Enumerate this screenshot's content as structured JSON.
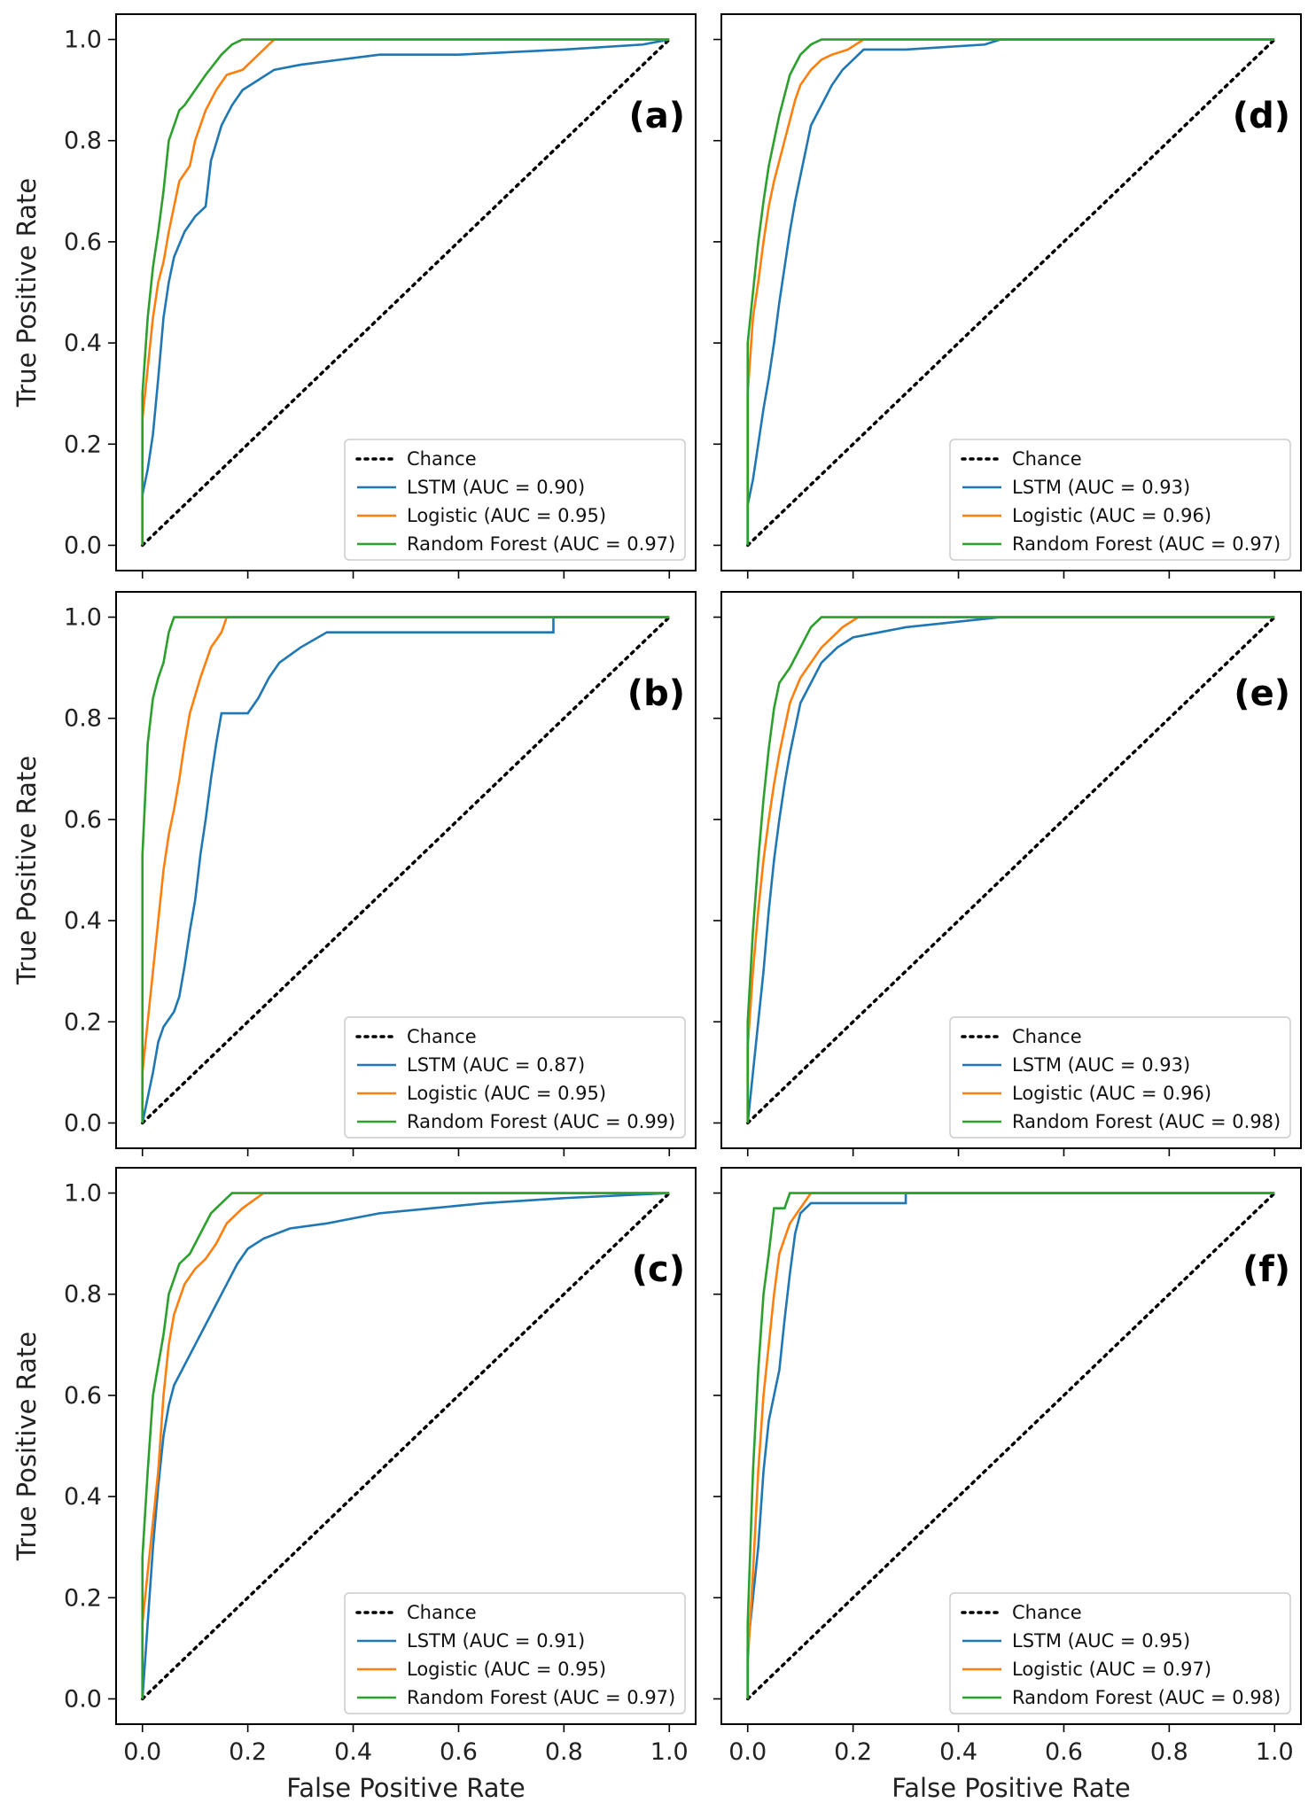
{
  "chart_data": {
    "type": "line",
    "xlabel": "False Positive Rate",
    "ylabel": "True Positive Rate",
    "xlim": [
      -0.05,
      1.05
    ],
    "ylim": [
      -0.05,
      1.05
    ],
    "xticks": [
      "0.0",
      "0.2",
      "0.4",
      "0.6",
      "0.8",
      "1.0"
    ],
    "yticks": [
      "0.0",
      "0.2",
      "0.4",
      "0.6",
      "0.8",
      "1.0"
    ],
    "colors": {
      "chance": "#000000",
      "LSTM": "#1f77b4",
      "Logistic": "#ff7f0e",
      "Random Forest": "#2ca02c"
    },
    "legend_location": "lower-right",
    "panels": [
      {
        "label": "(a)",
        "legend": [
          "Chance",
          "LSTM (AUC = 0.90)",
          "Logistic (AUC = 0.95)",
          "Random Forest (AUC = 0.97)"
        ],
        "series": [
          {
            "name": "Chance",
            "x": [
              0,
              1
            ],
            "y": [
              0,
              1
            ]
          },
          {
            "name": "LSTM",
            "x": [
              0,
              0,
              0.01,
              0.02,
              0.03,
              0.04,
              0.05,
              0.06,
              0.08,
              0.1,
              0.12,
              0.13,
              0.15,
              0.17,
              0.19,
              0.22,
              0.25,
              0.3,
              0.45,
              0.6,
              0.8,
              0.95,
              1.0
            ],
            "y": [
              0,
              0.1,
              0.15,
              0.22,
              0.33,
              0.45,
              0.52,
              0.57,
              0.62,
              0.65,
              0.67,
              0.76,
              0.83,
              0.87,
              0.9,
              0.92,
              0.94,
              0.95,
              0.97,
              0.97,
              0.98,
              0.99,
              1.0
            ]
          },
          {
            "name": "Logistic",
            "x": [
              0,
              0,
              0.01,
              0.02,
              0.03,
              0.04,
              0.05,
              0.06,
              0.07,
              0.09,
              0.1,
              0.12,
              0.14,
              0.16,
              0.19,
              0.21,
              0.23,
              0.25,
              1.0
            ],
            "y": [
              0,
              0.25,
              0.35,
              0.45,
              0.52,
              0.56,
              0.62,
              0.67,
              0.72,
              0.75,
              0.8,
              0.86,
              0.9,
              0.93,
              0.94,
              0.96,
              0.98,
              1.0,
              1.0
            ]
          },
          {
            "name": "Random Forest",
            "x": [
              0,
              0,
              0.01,
              0.02,
              0.03,
              0.04,
              0.05,
              0.07,
              0.08,
              0.1,
              0.12,
              0.15,
              0.17,
              0.19,
              1.0
            ],
            "y": [
              0,
              0.3,
              0.45,
              0.55,
              0.62,
              0.7,
              0.8,
              0.86,
              0.87,
              0.9,
              0.93,
              0.97,
              0.99,
              1.0,
              1.0
            ]
          }
        ]
      },
      {
        "label": "(b)",
        "legend": [
          "Chance",
          "LSTM (AUC = 0.87)",
          "Logistic (AUC = 0.95)",
          "Random Forest (AUC = 0.99)"
        ],
        "series": [
          {
            "name": "Chance",
            "x": [
              0,
              1
            ],
            "y": [
              0,
              1
            ]
          },
          {
            "name": "LSTM",
            "x": [
              0,
              0.01,
              0.02,
              0.03,
              0.04,
              0.06,
              0.07,
              0.08,
              0.09,
              0.1,
              0.11,
              0.12,
              0.13,
              0.14,
              0.15,
              0.17,
              0.2,
              0.22,
              0.24,
              0.26,
              0.3,
              0.35,
              0.5,
              0.78,
              0.78,
              1.0
            ],
            "y": [
              0,
              0.05,
              0.1,
              0.16,
              0.19,
              0.22,
              0.25,
              0.31,
              0.38,
              0.44,
              0.53,
              0.6,
              0.68,
              0.75,
              0.81,
              0.81,
              0.81,
              0.84,
              0.88,
              0.91,
              0.94,
              0.97,
              0.97,
              0.97,
              1.0,
              1.0
            ]
          },
          {
            "name": "Logistic",
            "x": [
              0,
              0,
              0.01,
              0.02,
              0.03,
              0.04,
              0.05,
              0.06,
              0.07,
              0.08,
              0.09,
              0.11,
              0.13,
              0.15,
              0.16,
              1.0
            ],
            "y": [
              0,
              0.1,
              0.2,
              0.3,
              0.4,
              0.5,
              0.57,
              0.62,
              0.68,
              0.75,
              0.81,
              0.88,
              0.94,
              0.97,
              1.0,
              1.0
            ]
          },
          {
            "name": "Random Forest",
            "x": [
              0,
              0,
              0.01,
              0.02,
              0.03,
              0.04,
              0.05,
              0.06,
              1.0
            ],
            "y": [
              0,
              0.53,
              0.75,
              0.84,
              0.88,
              0.91,
              0.97,
              1.0,
              1.0
            ]
          }
        ]
      },
      {
        "label": "(c)",
        "legend": [
          "Chance",
          "LSTM (AUC = 0.91)",
          "Logistic (AUC = 0.95)",
          "Random Forest (AUC = 0.97)"
        ],
        "series": [
          {
            "name": "Chance",
            "x": [
              0,
              1
            ],
            "y": [
              0,
              1
            ]
          },
          {
            "name": "LSTM",
            "x": [
              0,
              0.01,
              0.02,
              0.03,
              0.04,
              0.05,
              0.06,
              0.08,
              0.1,
              0.12,
              0.14,
              0.16,
              0.18,
              0.2,
              0.23,
              0.28,
              0.35,
              0.45,
              0.55,
              0.65,
              0.8,
              1.0
            ],
            "y": [
              0,
              0.15,
              0.3,
              0.42,
              0.52,
              0.58,
              0.62,
              0.66,
              0.7,
              0.74,
              0.78,
              0.82,
              0.86,
              0.89,
              0.91,
              0.93,
              0.94,
              0.96,
              0.97,
              0.98,
              0.99,
              1.0
            ]
          },
          {
            "name": "Logistic",
            "x": [
              0,
              0,
              0.01,
              0.02,
              0.03,
              0.04,
              0.05,
              0.06,
              0.08,
              0.1,
              0.12,
              0.14,
              0.16,
              0.19,
              0.23,
              1.0
            ],
            "y": [
              0,
              0.15,
              0.25,
              0.35,
              0.45,
              0.6,
              0.7,
              0.76,
              0.82,
              0.85,
              0.87,
              0.9,
              0.94,
              0.97,
              1.0,
              1.0
            ]
          },
          {
            "name": "Random Forest",
            "x": [
              0,
              0,
              0.01,
              0.02,
              0.03,
              0.04,
              0.05,
              0.07,
              0.09,
              0.11,
              0.13,
              0.15,
              0.17,
              1.0
            ],
            "y": [
              0,
              0.28,
              0.45,
              0.6,
              0.66,
              0.72,
              0.8,
              0.86,
              0.88,
              0.92,
              0.96,
              0.98,
              1.0,
              1.0
            ]
          }
        ]
      },
      {
        "label": "(d)",
        "legend": [
          "Chance",
          "LSTM (AUC = 0.93)",
          "Logistic (AUC = 0.96)",
          "Random Forest (AUC = 0.97)"
        ],
        "series": [
          {
            "name": "Chance",
            "x": [
              0,
              1
            ],
            "y": [
              0,
              1
            ]
          },
          {
            "name": "LSTM",
            "x": [
              0,
              0,
              0.01,
              0.02,
              0.03,
              0.04,
              0.05,
              0.06,
              0.07,
              0.08,
              0.09,
              0.1,
              0.11,
              0.12,
              0.14,
              0.16,
              0.18,
              0.2,
              0.22,
              0.3,
              0.45,
              0.48,
              1.0
            ],
            "y": [
              0,
              0.08,
              0.13,
              0.2,
              0.27,
              0.33,
              0.4,
              0.48,
              0.55,
              0.62,
              0.68,
              0.73,
              0.78,
              0.83,
              0.87,
              0.91,
              0.94,
              0.96,
              0.98,
              0.98,
              0.99,
              1.0,
              1.0
            ]
          },
          {
            "name": "Logistic",
            "x": [
              0,
              0,
              0.01,
              0.02,
              0.03,
              0.04,
              0.05,
              0.06,
              0.07,
              0.08,
              0.09,
              0.1,
              0.12,
              0.14,
              0.16,
              0.19,
              0.22,
              1.0
            ],
            "y": [
              0,
              0.3,
              0.45,
              0.52,
              0.6,
              0.67,
              0.72,
              0.76,
              0.8,
              0.84,
              0.88,
              0.91,
              0.94,
              0.96,
              0.97,
              0.98,
              1.0,
              1.0
            ]
          },
          {
            "name": "Random Forest",
            "x": [
              0,
              0,
              0.01,
              0.02,
              0.03,
              0.04,
              0.05,
              0.06,
              0.07,
              0.08,
              0.1,
              0.12,
              0.14,
              1.0
            ],
            "y": [
              0,
              0.4,
              0.5,
              0.6,
              0.68,
              0.75,
              0.8,
              0.85,
              0.89,
              0.93,
              0.97,
              0.99,
              1.0,
              1.0
            ]
          }
        ]
      },
      {
        "label": "(e)",
        "legend": [
          "Chance",
          "LSTM (AUC = 0.93)",
          "Logistic (AUC = 0.96)",
          "Random Forest (AUC = 0.98)"
        ],
        "series": [
          {
            "name": "Chance",
            "x": [
              0,
              1
            ],
            "y": [
              0,
              1
            ]
          },
          {
            "name": "LSTM",
            "x": [
              0,
              0.01,
              0.02,
              0.03,
              0.04,
              0.05,
              0.06,
              0.07,
              0.08,
              0.09,
              0.1,
              0.12,
              0.14,
              0.17,
              0.2,
              0.25,
              0.3,
              0.48,
              1.0
            ],
            "y": [
              0,
              0.1,
              0.2,
              0.3,
              0.42,
              0.52,
              0.6,
              0.67,
              0.73,
              0.78,
              0.83,
              0.87,
              0.91,
              0.94,
              0.96,
              0.97,
              0.98,
              1.0,
              1.0
            ]
          },
          {
            "name": "Logistic",
            "x": [
              0,
              0,
              0.01,
              0.02,
              0.03,
              0.04,
              0.05,
              0.06,
              0.07,
              0.08,
              0.1,
              0.12,
              0.14,
              0.16,
              0.18,
              0.21,
              1.0
            ],
            "y": [
              0,
              0.15,
              0.3,
              0.42,
              0.52,
              0.6,
              0.67,
              0.73,
              0.78,
              0.83,
              0.88,
              0.91,
              0.94,
              0.96,
              0.98,
              1.0,
              1.0
            ]
          },
          {
            "name": "Random Forest",
            "x": [
              0,
              0,
              0.01,
              0.02,
              0.03,
              0.04,
              0.05,
              0.06,
              0.08,
              0.1,
              0.12,
              0.14,
              1.0
            ],
            "y": [
              0,
              0.2,
              0.38,
              0.52,
              0.64,
              0.74,
              0.82,
              0.87,
              0.9,
              0.94,
              0.98,
              1.0,
              1.0
            ]
          }
        ]
      },
      {
        "label": "(f)",
        "legend": [
          "Chance",
          "LSTM (AUC = 0.95)",
          "Logistic (AUC = 0.97)",
          "Random Forest (AUC = 0.98)"
        ],
        "series": [
          {
            "name": "Chance",
            "x": [
              0,
              1
            ],
            "y": [
              0,
              1
            ]
          },
          {
            "name": "LSTM",
            "x": [
              0,
              0,
              0.01,
              0.02,
              0.03,
              0.04,
              0.05,
              0.06,
              0.07,
              0.08,
              0.09,
              0.1,
              0.12,
              0.3,
              0.3,
              1.0
            ],
            "y": [
              0,
              0.1,
              0.2,
              0.3,
              0.45,
              0.55,
              0.6,
              0.65,
              0.75,
              0.84,
              0.92,
              0.96,
              0.98,
              0.98,
              1.0,
              1.0
            ]
          },
          {
            "name": "Logistic",
            "x": [
              0,
              0,
              0.01,
              0.02,
              0.03,
              0.04,
              0.05,
              0.06,
              0.08,
              0.1,
              0.12,
              1.0
            ],
            "y": [
              0,
              0.07,
              0.25,
              0.45,
              0.6,
              0.7,
              0.8,
              0.88,
              0.94,
              0.97,
              1.0,
              1.0
            ]
          },
          {
            "name": "Random Forest",
            "x": [
              0,
              0,
              0.01,
              0.02,
              0.03,
              0.04,
              0.05,
              0.07,
              0.08,
              1.0
            ],
            "y": [
              0,
              0.15,
              0.45,
              0.65,
              0.8,
              0.88,
              0.97,
              0.97,
              1.0,
              1.0
            ]
          }
        ]
      }
    ]
  }
}
